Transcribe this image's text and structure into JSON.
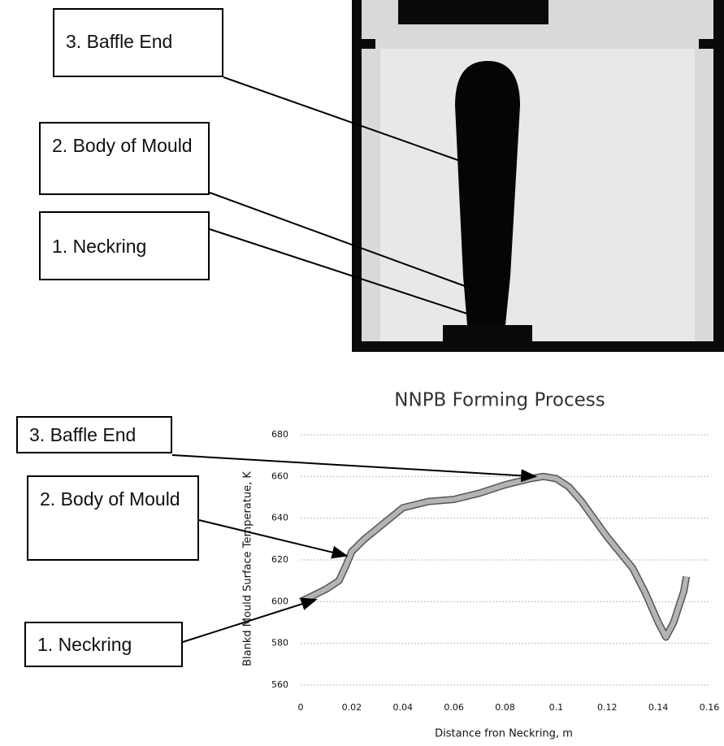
{
  "mould_labels": [
    "3. Baffle End",
    "2. Body of Mould",
    "1. Neckring"
  ],
  "chart_data": {
    "type": "line",
    "title": "NNPB Forming Process",
    "xlabel": "Distance fron Neckring, m",
    "ylabel": "Blankd Mould Surface Temperatue, K",
    "x": [
      0,
      0.005,
      0.01,
      0.015,
      0.018,
      0.02,
      0.025,
      0.03,
      0.04,
      0.05,
      0.06,
      0.07,
      0.08,
      0.09,
      0.095,
      0.1,
      0.105,
      0.11,
      0.12,
      0.13,
      0.135,
      0.14,
      0.143,
      0.146,
      0.15,
      0.151
    ],
    "series": [
      {
        "color": "#b4b4b4",
        "values": [
          600,
          603,
          606,
          610,
          618,
          624,
          630,
          635,
          645,
          648,
          649,
          652,
          656,
          659,
          660,
          659,
          655,
          648,
          631,
          616,
          604,
          590,
          583,
          590,
          605,
          612
        ]
      }
    ],
    "xlim": [
      0,
      0.16
    ],
    "xticks": [
      0,
      0.02,
      0.04,
      0.06,
      0.08,
      0.1,
      0.12,
      0.14,
      0.16
    ],
    "ylim": [
      560,
      680
    ],
    "yticks": [
      560,
      580,
      600,
      620,
      640,
      660,
      680
    ],
    "grid": true,
    "annotations": [
      {
        "text": "3. Baffle End",
        "x": 0.092,
        "y": 660
      },
      {
        "text": "2. Body of Mould",
        "x": 0.018,
        "y": 622
      },
      {
        "text": "1. Neckring",
        "x": 0.006,
        "y": 601
      }
    ]
  }
}
